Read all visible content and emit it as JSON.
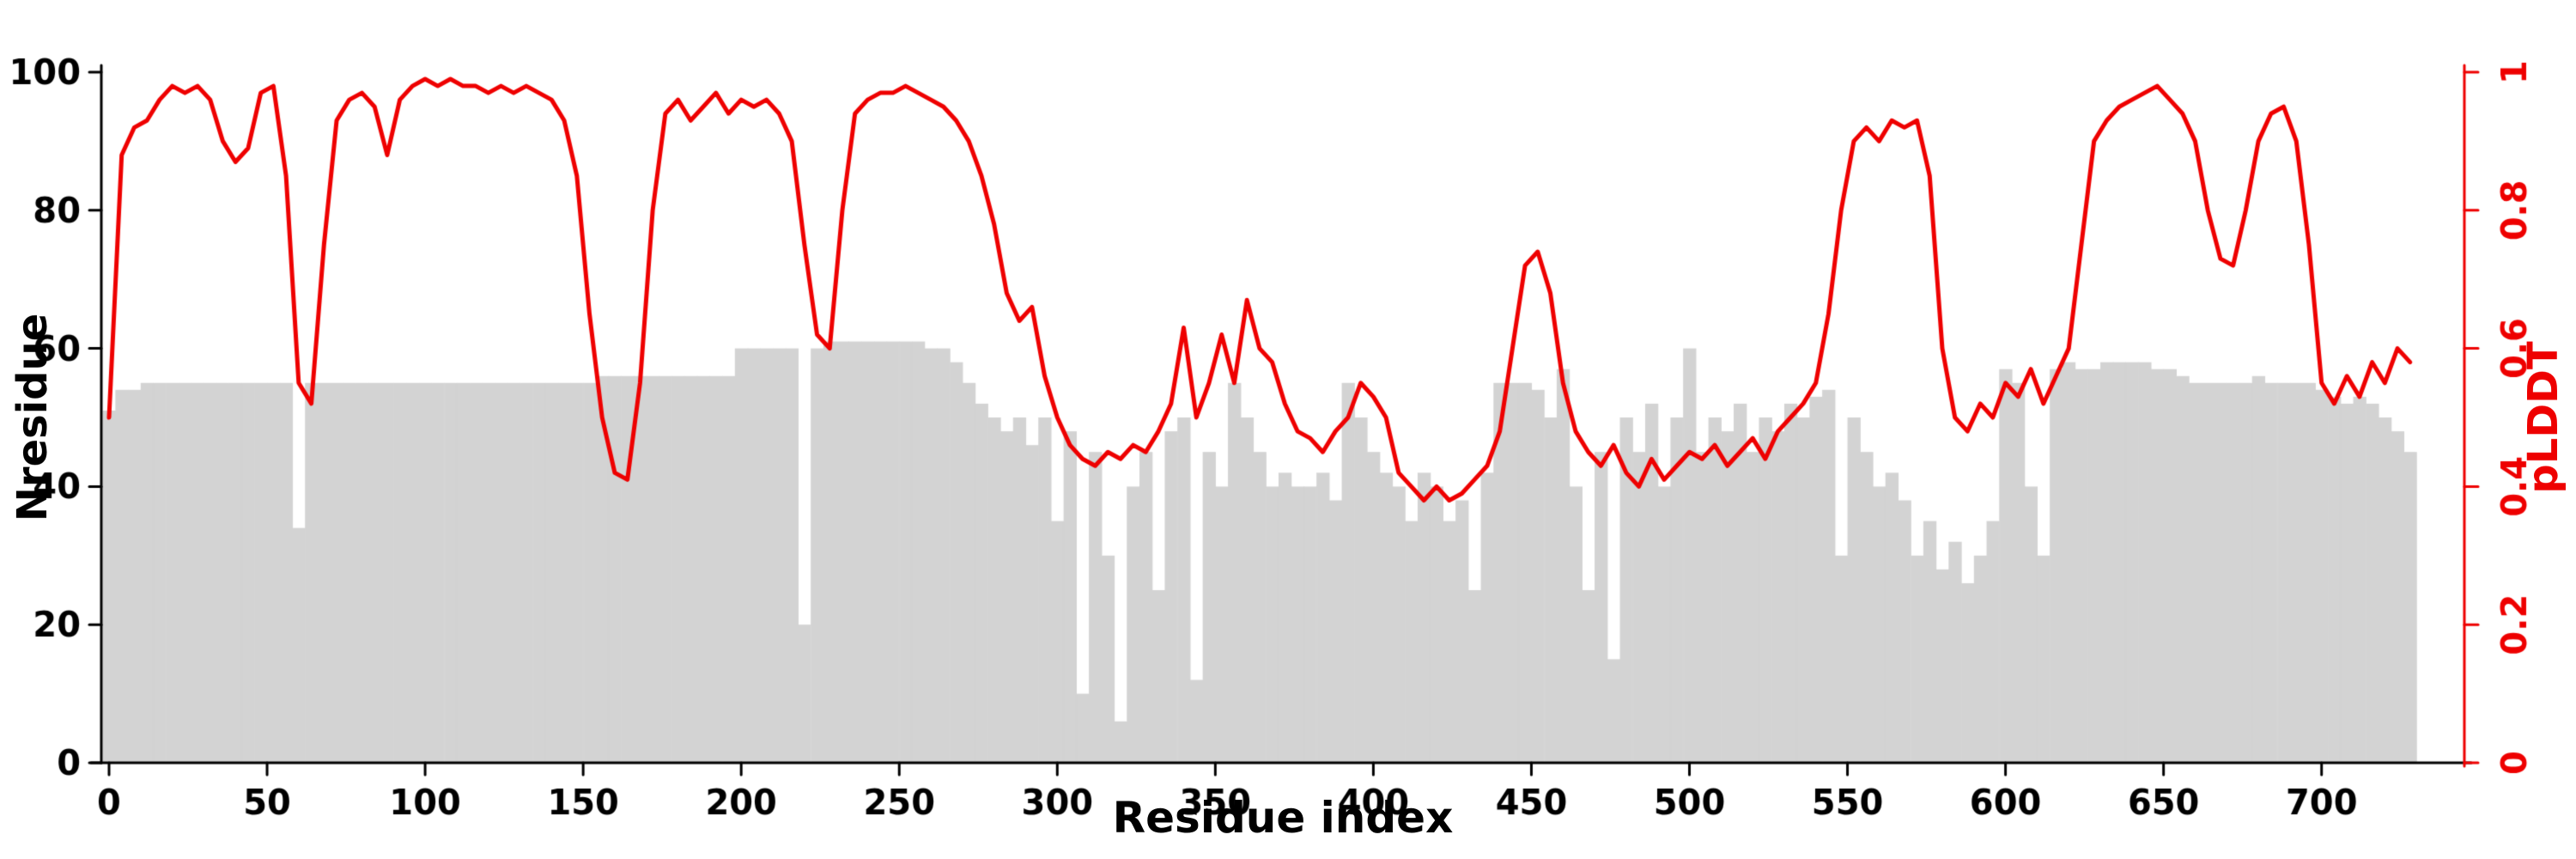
{
  "chart_data": {
    "type": "bar",
    "title": "",
    "xlabel": "Residue index",
    "ylabel_left": "Nresidue",
    "ylabel_right": "pLDDT",
    "xlim": [
      0,
      743
    ],
    "ylim_left": [
      0,
      100
    ],
    "ylim_right": [
      0,
      1
    ],
    "x_ticks": [
      0,
      50,
      100,
      150,
      200,
      250,
      300,
      350,
      400,
      450,
      500,
      550,
      600,
      650,
      700
    ],
    "y_left_ticks": [
      0,
      20,
      40,
      60,
      80,
      100
    ],
    "y_right_ticks": [
      0,
      0.2,
      0.4,
      0.6,
      0.8,
      1
    ],
    "grid": false,
    "legend": "none",
    "bar_color": "#d3d3d3",
    "line_color": "#ee0000",
    "axis_color": "#000000",
    "x": [
      0,
      4,
      8,
      12,
      16,
      20,
      24,
      28,
      32,
      36,
      40,
      44,
      48,
      52,
      56,
      60,
      64,
      68,
      72,
      76,
      80,
      84,
      88,
      92,
      96,
      100,
      104,
      108,
      112,
      116,
      120,
      124,
      128,
      132,
      136,
      140,
      144,
      148,
      152,
      156,
      160,
      164,
      168,
      172,
      176,
      180,
      184,
      188,
      192,
      196,
      200,
      204,
      208,
      212,
      216,
      220,
      224,
      228,
      232,
      236,
      240,
      244,
      248,
      252,
      256,
      260,
      264,
      268,
      272,
      276,
      280,
      284,
      288,
      292,
      296,
      300,
      304,
      308,
      312,
      316,
      320,
      324,
      328,
      332,
      336,
      340,
      344,
      348,
      352,
      356,
      360,
      364,
      368,
      372,
      376,
      380,
      384,
      388,
      392,
      396,
      400,
      404,
      408,
      412,
      416,
      420,
      424,
      428,
      432,
      436,
      440,
      444,
      448,
      452,
      456,
      460,
      464,
      468,
      472,
      476,
      480,
      484,
      488,
      492,
      496,
      500,
      504,
      508,
      512,
      516,
      520,
      524,
      528,
      532,
      536,
      540,
      544,
      548,
      552,
      556,
      560,
      564,
      568,
      572,
      576,
      580,
      584,
      588,
      592,
      596,
      600,
      604,
      608,
      612,
      616,
      620,
      624,
      628,
      632,
      636,
      640,
      644,
      648,
      652,
      656,
      660,
      664,
      668,
      672,
      676,
      680,
      684,
      688,
      692,
      696,
      700,
      704,
      708,
      712,
      716,
      720,
      724,
      728
    ],
    "series": [
      {
        "name": "Nresidue",
        "type": "bar",
        "axis": "left",
        "values": [
          51,
          54,
          54,
          55,
          55,
          55,
          55,
          55,
          55,
          55,
          55,
          55,
          55,
          55,
          55,
          34,
          55,
          55,
          55,
          55,
          55,
          55,
          55,
          55,
          55,
          55,
          55,
          55,
          55,
          55,
          55,
          55,
          55,
          55,
          55,
          55,
          55,
          55,
          55,
          56,
          56,
          56,
          56,
          56,
          56,
          56,
          56,
          56,
          56,
          56,
          60,
          60,
          60,
          60,
          60,
          20,
          60,
          61,
          61,
          61,
          61,
          61,
          61,
          61,
          61,
          60,
          60,
          58,
          55,
          52,
          50,
          48,
          50,
          46,
          50,
          35,
          48,
          10,
          45,
          30,
          6,
          40,
          45,
          25,
          48,
          50,
          12,
          45,
          40,
          55,
          50,
          45,
          40,
          42,
          40,
          40,
          42,
          38,
          55,
          50,
          45,
          42,
          40,
          35,
          42,
          40,
          35,
          38,
          25,
          42,
          55,
          55,
          55,
          54,
          50,
          57,
          40,
          25,
          45,
          15,
          50,
          45,
          52,
          40,
          50,
          60,
          45,
          50,
          48,
          52,
          45,
          50,
          48,
          52,
          50,
          53,
          54,
          30,
          50,
          45,
          40,
          42,
          38,
          30,
          35,
          28,
          32,
          26,
          30,
          35,
          57,
          55,
          40,
          30,
          57,
          58,
          57,
          57,
          58,
          58,
          58,
          58,
          57,
          57,
          56,
          55,
          55,
          55,
          55,
          55,
          56,
          55,
          55,
          55,
          55,
          54,
          53,
          52,
          53,
          52,
          50,
          48,
          45
        ]
      },
      {
        "name": "pLDDT",
        "type": "line",
        "axis": "right",
        "values": [
          0.5,
          0.88,
          0.92,
          0.93,
          0.96,
          0.98,
          0.97,
          0.98,
          0.96,
          0.9,
          0.87,
          0.89,
          0.97,
          0.98,
          0.85,
          0.55,
          0.52,
          0.75,
          0.93,
          0.96,
          0.97,
          0.95,
          0.88,
          0.96,
          0.98,
          0.99,
          0.98,
          0.99,
          0.98,
          0.98,
          0.97,
          0.98,
          0.97,
          0.98,
          0.97,
          0.96,
          0.93,
          0.85,
          0.65,
          0.5,
          0.42,
          0.41,
          0.55,
          0.8,
          0.94,
          0.96,
          0.93,
          0.95,
          0.97,
          0.94,
          0.96,
          0.95,
          0.96,
          0.94,
          0.9,
          0.75,
          0.62,
          0.6,
          0.8,
          0.94,
          0.96,
          0.97,
          0.97,
          0.98,
          0.97,
          0.96,
          0.95,
          0.93,
          0.9,
          0.85,
          0.78,
          0.68,
          0.64,
          0.66,
          0.56,
          0.5,
          0.46,
          0.44,
          0.43,
          0.45,
          0.44,
          0.46,
          0.45,
          0.48,
          0.52,
          0.63,
          0.5,
          0.55,
          0.62,
          0.55,
          0.67,
          0.6,
          0.58,
          0.52,
          0.48,
          0.47,
          0.45,
          0.48,
          0.5,
          0.55,
          0.53,
          0.5,
          0.42,
          0.4,
          0.38,
          0.4,
          0.38,
          0.39,
          0.41,
          0.43,
          0.48,
          0.6,
          0.72,
          0.74,
          0.68,
          0.55,
          0.48,
          0.45,
          0.43,
          0.46,
          0.42,
          0.4,
          0.44,
          0.41,
          0.43,
          0.45,
          0.44,
          0.46,
          0.43,
          0.45,
          0.47,
          0.44,
          0.48,
          0.5,
          0.52,
          0.55,
          0.65,
          0.8,
          0.9,
          0.92,
          0.9,
          0.93,
          0.92,
          0.93,
          0.85,
          0.6,
          0.5,
          0.48,
          0.52,
          0.5,
          0.55,
          0.53,
          0.57,
          0.52,
          0.56,
          0.6,
          0.75,
          0.9,
          0.93,
          0.95,
          0.96,
          0.97,
          0.98,
          0.96,
          0.94,
          0.9,
          0.8,
          0.73,
          0.72,
          0.8,
          0.9,
          0.94,
          0.95,
          0.9,
          0.75,
          0.55,
          0.52,
          0.56,
          0.53,
          0.58,
          0.55,
          0.6,
          0.58
        ]
      }
    ]
  }
}
